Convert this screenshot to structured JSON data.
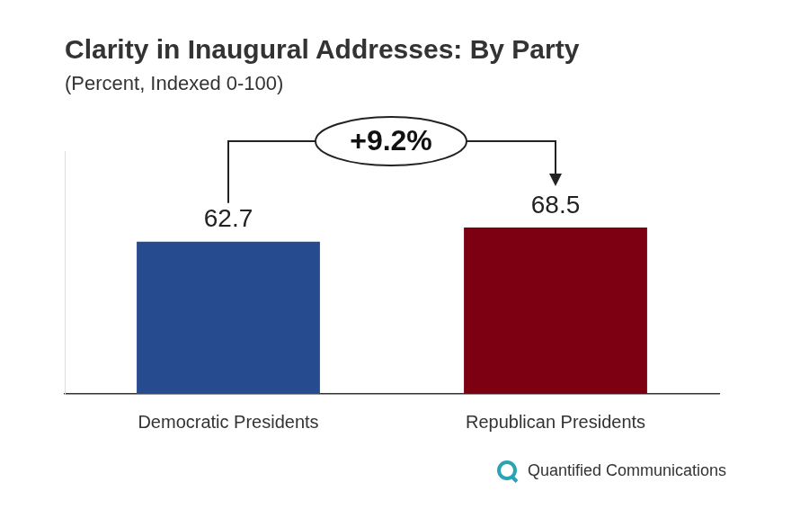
{
  "chart_data": {
    "type": "bar",
    "title": "Clarity in Inaugural Addresses: By Party",
    "subtitle": "(Percent, Indexed 0-100)",
    "categories": [
      "Democratic Presidents",
      "Republican Presidents"
    ],
    "values": [
      62.7,
      68.5
    ],
    "colors": [
      "#264b8f",
      "#7d0012"
    ],
    "ylim": [
      0,
      100
    ],
    "grid": false,
    "data_labels": true,
    "tick_labels": "x",
    "annotation": "+9.2%",
    "source": "Quantified Communications"
  }
}
